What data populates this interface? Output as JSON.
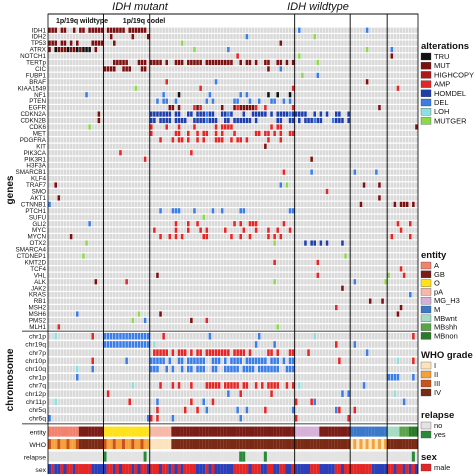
{
  "chart_data": {
    "type": "heatmap",
    "header": {
      "idh_mutant": "IDH mutant",
      "idh_wildtype": "IDH wildtype",
      "codel_wildtype": "1p/19q wildtype",
      "codel": "1p/19q codel"
    },
    "row_axis_label_genes": "genes",
    "row_axis_label_chromosome": "chromosome",
    "genes": [
      "IDH1",
      "IDH2",
      "TP53",
      "ATRX",
      "NOTCH1",
      "TERTp",
      "CIC",
      "FUBP1",
      "BRAF",
      "KIAA1549",
      "NF1",
      "PTEN",
      "EGFR",
      "CDKN2A",
      "CDKN2B",
      "CDK6",
      "MET",
      "PDGFRA",
      "KIT",
      "PIK3CA",
      "PIK3R1",
      "H3F3A",
      "SMARCB1",
      "KLF4",
      "TRAF7",
      "SMO",
      "AKT1",
      "CTNNB1",
      "PTCH1",
      "SUFU",
      "GLI2",
      "MYC",
      "MYCN",
      "OTX2",
      "SMARCA4",
      "CTDNEP1",
      "KMT2D",
      "TCF4",
      "VHL",
      "ALK",
      "JAK2",
      "KRAS",
      "RB1",
      "MSH2",
      "MSH6",
      "PMS2",
      "MLH1"
    ],
    "chromosomes": [
      "chr1p",
      "chr19q",
      "chr7p",
      "chr10p",
      "chr10q",
      "chr1p",
      "chr7q",
      "chr12p",
      "chr11p",
      "chr5q",
      "chr6q"
    ],
    "annotation_rows": [
      "entity",
      "WHO",
      "relapse",
      "sex"
    ],
    "legends": {
      "alterations": {
        "title": "alterations",
        "items": [
          {
            "label": "TRU",
            "color": "#111111"
          },
          {
            "label": "MUT",
            "color": "#7a1010"
          },
          {
            "label": "HIGHCOPY",
            "color": "#b01818"
          },
          {
            "label": "AMP",
            "color": "#e32626"
          },
          {
            "label": "HOMDEL",
            "color": "#1f3fa8"
          },
          {
            "label": "DEL",
            "color": "#3b7de6"
          },
          {
            "label": "LOH",
            "color": "#8ee0e0"
          },
          {
            "label": "MUTGER",
            "color": "#8cd94a"
          }
        ]
      },
      "entity": {
        "title": "entity",
        "items": [
          {
            "label": "A",
            "color": "#f1826e"
          },
          {
            "label": "GB",
            "color": "#7a1d16"
          },
          {
            "label": "O",
            "color": "#ffe21a"
          },
          {
            "label": "pA",
            "color": "#f6b8a8"
          },
          {
            "label": "MG_H3",
            "color": "#d6b0d8"
          },
          {
            "label": "M",
            "color": "#3b78c8"
          },
          {
            "label": "MBwnt",
            "color": "#a3dcc0"
          },
          {
            "label": "MBshh",
            "color": "#5aa34a"
          },
          {
            "label": "MBnon",
            "color": "#2a7a2a"
          }
        ]
      },
      "who": {
        "title": "WHO grade",
        "items": [
          {
            "label": "I",
            "color": "#fbe3bd"
          },
          {
            "label": "II",
            "color": "#f5a13a"
          },
          {
            "label": "III",
            "color": "#c9531e"
          },
          {
            "label": "IV",
            "color": "#7a2a14"
          }
        ]
      },
      "relapse": {
        "title": "relapse",
        "items": [
          {
            "label": "no",
            "color": "#e3e3e3"
          },
          {
            "label": "yes",
            "color": "#2a8a3a"
          }
        ]
      },
      "sex": {
        "title": "sex",
        "items": [
          {
            "label": "male",
            "color": "#e32626"
          }
        ]
      }
    }
  }
}
